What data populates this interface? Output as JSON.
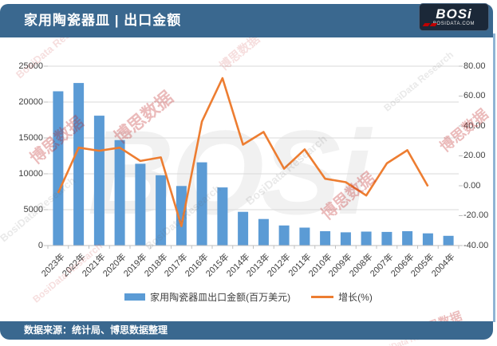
{
  "header": {
    "title": "家用陶瓷器皿 | 出口金额"
  },
  "logo": {
    "text": "BOSi",
    "subtext": "BOSIDATA.COM"
  },
  "footer": {
    "source": "数据来源：统计局、博思数据整理"
  },
  "watermarks": {
    "cn": "博思数据",
    "en": "BosiData Research",
    "logo": "BOSi"
  },
  "colors": {
    "banner": "#3A688F",
    "bar": "#5B9BD5",
    "line": "#ED7D31",
    "grid": "#D9D9D9",
    "axis": "#BFBFBF",
    "logo_bg": "#1B2838",
    "logo_red": "#C00000"
  },
  "chart_data": {
    "type": "combo bar+line",
    "title": "家用陶瓷器皿 | 出口金额",
    "categories": [
      "2023年",
      "2022年",
      "2021年",
      "2020年",
      "2019年",
      "2018年",
      "2017年",
      "2016年",
      "2015年",
      "2014年",
      "2013年",
      "2012年",
      "2011年",
      "2010年",
      "2009年",
      "2008年",
      "2007年",
      "2006年",
      "2005年",
      "2004年"
    ],
    "series": [
      {
        "name": "家用陶瓷器皿出口金额(百万美元)",
        "type": "bar",
        "axis": "left",
        "color": "#5B9BD5",
        "values": [
          21500,
          22650,
          18100,
          14700,
          11400,
          9800,
          8300,
          11600,
          8100,
          4700,
          3700,
          2800,
          2500,
          2000,
          1850,
          1950,
          1900,
          2000,
          1700,
          1350
        ]
      },
      {
        "name": "增长(%)",
        "type": "line",
        "axis": "right",
        "color": "#ED7D31",
        "values": [
          -4.8,
          25.5,
          23.4,
          25.5,
          16.6,
          19.0,
          -27.0,
          43.0,
          72.0,
          27.5,
          36.0,
          11.4,
          24.3,
          4.7,
          2.4,
          -6.5,
          15.0,
          23.8,
          -0.3,
          null
        ]
      }
    ],
    "left_axis": {
      "min": 0,
      "max": 25000,
      "step": 5000,
      "tick_labels": [
        "0",
        "5000",
        "10000",
        "15000",
        "20000",
        "25000"
      ]
    },
    "right_axis": {
      "min": -40,
      "max": 80,
      "step": 20,
      "tick_labels": [
        "-40.00",
        "-20.00",
        "0.00",
        "20.00",
        "40.00",
        "60.00",
        "80.00"
      ]
    },
    "grid": true,
    "legend_position": "bottom"
  }
}
